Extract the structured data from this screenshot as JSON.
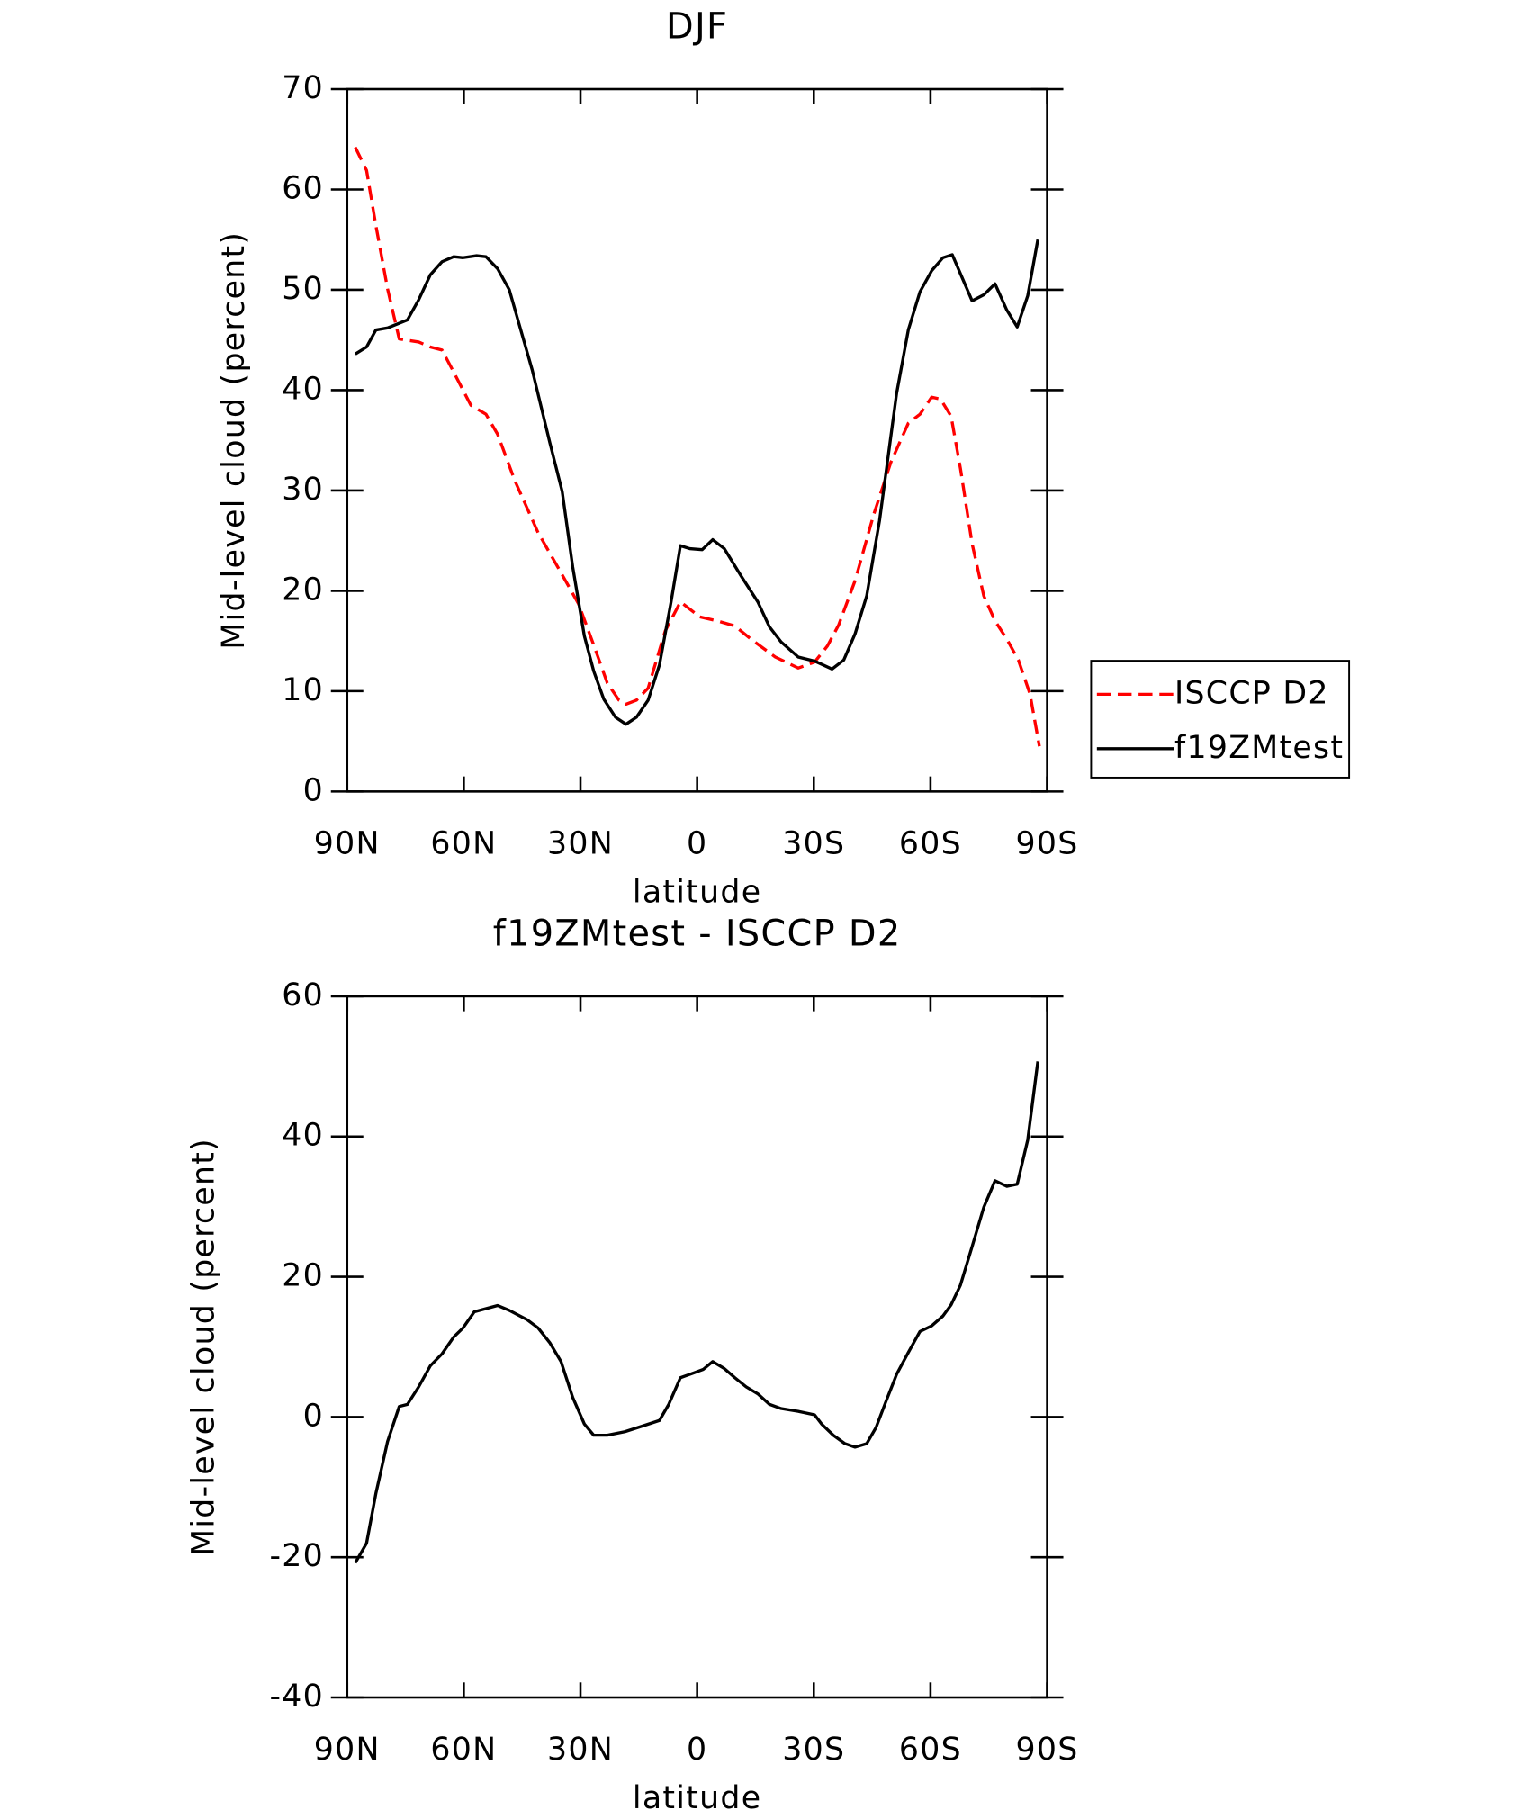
{
  "chart_data": [
    {
      "type": "line",
      "title": "DJF",
      "x_label": "latitude",
      "y_label": "Mid-level cloud (percent)",
      "xlim": [
        90,
        -90
      ],
      "xticks": [
        {
          "value": 90,
          "label": "90N"
        },
        {
          "value": 60,
          "label": "60N"
        },
        {
          "value": 30,
          "label": "30N"
        },
        0,
        {
          "value": -30,
          "label": "30S"
        },
        {
          "value": -60,
          "label": "60S"
        },
        {
          "value": -90,
          "label": "90S"
        }
      ],
      "ylim": [
        0,
        70
      ],
      "yticks": [
        0,
        10,
        20,
        30,
        40,
        50,
        60,
        70
      ],
      "legend": "right",
      "series": [
        {
          "name": "ISCCP D2",
          "color": "#ff0000",
          "style": "dashed",
          "x": [
            87.9,
            85,
            82.6,
            79.6,
            76.6,
            71.6,
            68.6,
            65.6,
            62.6,
            58.2,
            54.3,
            51.3,
            46.9,
            40.9,
            35,
            30.5,
            26.6,
            23.1,
            20.1,
            18.3,
            15.6,
            12.6,
            8.2,
            4.3,
            -0.7,
            -5.2,
            -9.7,
            -14.1,
            -20.1,
            -26,
            -30.2,
            -33.5,
            -36.4,
            -40.6,
            -45.4,
            -49.8,
            -54.3,
            -57.3,
            -60.3,
            -62.6,
            -65.3,
            -67.7,
            -70.7,
            -73.7,
            -76.6,
            -79.6,
            -82.6,
            -85.6,
            -88
          ],
          "values": [
            64.2,
            61.9,
            56.4,
            50.1,
            45.1,
            44.8,
            44.3,
            44,
            41.8,
            38.5,
            37.6,
            35.6,
            31,
            25.8,
            21.8,
            18.7,
            14.6,
            10.8,
            9.1,
            8.7,
            9.1,
            10.3,
            16,
            18.9,
            17.4,
            17,
            16.5,
            15.1,
            13.4,
            12.3,
            12.9,
            14.5,
            16.6,
            21,
            27.6,
            32.8,
            36.7,
            37.6,
            39.3,
            39.1,
            37.4,
            32.2,
            24.7,
            19.5,
            17,
            15.2,
            13.1,
            9.7,
            4.5
          ]
        },
        {
          "name": "f19ZMtest",
          "color": "#000000",
          "style": "solid",
          "x": [
            87.9,
            85,
            82.6,
            79.6,
            74.5,
            71.6,
            68.6,
            65.6,
            62.6,
            60.2,
            56.7,
            54.3,
            51.3,
            48.3,
            42.4,
            37.9,
            34.7,
            32,
            29,
            26.6,
            24,
            21,
            18.3,
            15.6,
            12.6,
            9.7,
            6.7,
            4.3,
            1.9,
            -1.3,
            -4,
            -7,
            -11.1,
            -15.6,
            -18.6,
            -21.6,
            -26,
            -30.2,
            -34.7,
            -37.7,
            -40.6,
            -43.6,
            -46.9,
            -51.3,
            -54.3,
            -57.3,
            -60.3,
            -63.2,
            -65.6,
            -70.7,
            -73.7,
            -76.6,
            -79.6,
            -82.3,
            -85,
            -87.6
          ],
          "values": [
            43.6,
            44.3,
            46,
            46.2,
            47,
            49,
            51.5,
            52.8,
            53.3,
            53.2,
            53.4,
            53.3,
            52.1,
            50,
            42,
            34.8,
            29.9,
            22.4,
            15.5,
            12,
            9.2,
            7.4,
            6.7,
            7.4,
            9.1,
            12.6,
            18.9,
            24.5,
            24.2,
            24.1,
            25.1,
            24.2,
            21.6,
            18.9,
            16.4,
            14.9,
            13.4,
            13,
            12.2,
            13.1,
            15.7,
            19.5,
            27,
            39.7,
            46,
            49.8,
            51.9,
            53.2,
            53.5,
            48.9,
            49.5,
            50.6,
            48,
            46.3,
            49.4,
            55
          ]
        }
      ]
    },
    {
      "type": "line",
      "title": "f19ZMtest - ISCCP D2",
      "x_label": "latitude",
      "y_label": "Mid-level cloud (percent)",
      "xlim": [
        90,
        -90
      ],
      "xticks": [
        {
          "value": 90,
          "label": "90N"
        },
        {
          "value": 60,
          "label": "60N"
        },
        {
          "value": 30,
          "label": "30N"
        },
        0,
        {
          "value": -30,
          "label": "30S"
        },
        {
          "value": -60,
          "label": "60S"
        },
        {
          "value": -90,
          "label": "90S"
        }
      ],
      "ylim": [
        -40,
        60
      ],
      "yticks": [
        -40,
        -20,
        0,
        20,
        40,
        60
      ],
      "color": "#000000",
      "x": [
        87.9,
        85,
        82.6,
        79.6,
        76.6,
        74.5,
        71.6,
        68.6,
        65.6,
        62.6,
        60.2,
        57.3,
        51.3,
        48.3,
        43.8,
        40.9,
        37.9,
        35,
        32,
        29,
        26.6,
        23.1,
        18.6,
        14.1,
        9.7,
        7.3,
        4.3,
        0.8,
        -1.6,
        -4,
        -7,
        -9.7,
        -12.6,
        -15.6,
        -18.6,
        -21.6,
        -26,
        -30.2,
        -32,
        -35,
        -38,
        -40.6,
        -43.6,
        -46,
        -48.4,
        -51.3,
        -54.3,
        -57.3,
        -60.3,
        -63.2,
        -65.3,
        -67.7,
        -70.7,
        -73.7,
        -76.6,
        -79.6,
        -82.3,
        -85,
        -87.6
      ],
      "values": [
        -20.8,
        -18,
        -10.9,
        -3.5,
        1.5,
        1.8,
        4.3,
        7.3,
        9,
        11.4,
        12.7,
        15,
        15.9,
        15.2,
        13.9,
        12.7,
        10.6,
        7.9,
        2.8,
        -1,
        -2.6,
        -2.6,
        -2.1,
        -1.3,
        -0.5,
        1.8,
        5.6,
        6.3,
        6.8,
        7.9,
        6.9,
        5.6,
        4.3,
        3.3,
        1.8,
        1.2,
        0.8,
        0.3,
        -1,
        -2.6,
        -3.8,
        -4.3,
        -3.8,
        -1.5,
        2,
        6.1,
        9.2,
        12.2,
        13,
        14.4,
        16,
        18.8,
        24.3,
        29.9,
        33.7,
        32.9,
        33.2,
        39.5,
        50.7
      ]
    }
  ]
}
